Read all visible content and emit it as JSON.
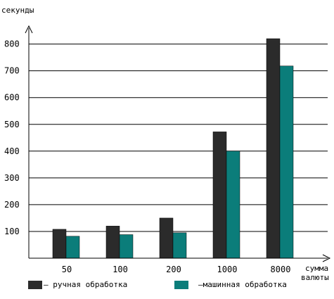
{
  "chart_data": {
    "type": "bar",
    "ylabel": "секунды",
    "xlabel_line1": "сумма",
    "xlabel_line2": "валюты",
    "categories": [
      "50",
      "100",
      "200",
      "1000",
      "8000"
    ],
    "yticks": [
      100,
      200,
      300,
      400,
      500,
      600,
      700,
      800
    ],
    "ylim": [
      0,
      850
    ],
    "grid": true,
    "legend_position": "bottom",
    "series": [
      {
        "name": "ручная обработка",
        "legend_text": "–  ручная обработка",
        "color": "#2b2b2b",
        "values": [
          108,
          120,
          150,
          472,
          820
        ]
      },
      {
        "name": "машинная обработка",
        "legend_text": "–машинная обработка",
        "color": "#0b7d7a",
        "values": [
          82,
          88,
          95,
          400,
          718
        ]
      }
    ]
  }
}
